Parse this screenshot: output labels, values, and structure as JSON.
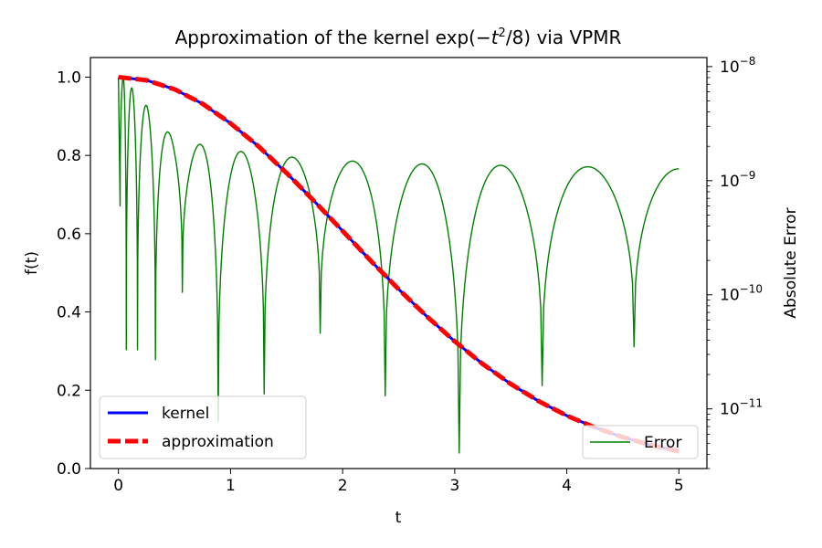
{
  "chart_data": {
    "type": "line",
    "title_prefix": "Approximation of the kernel exp(−",
    "title_var": "t",
    "title_exp": "2",
    "title_suffix": "/8) via VPMR",
    "xlabel": "t",
    "ylabel": "f(t)",
    "y2label": "Absolute Error",
    "xlim": [
      -0.25,
      5.25
    ],
    "ylim": [
      0,
      1.05
    ],
    "y2lim": [
      3e-12,
      1.2e-08
    ],
    "y2scale": "log",
    "xticks": [
      0,
      1,
      2,
      3,
      4,
      5
    ],
    "xtick_labels": [
      "0",
      "1",
      "2",
      "3",
      "4",
      "5"
    ],
    "yticks": [
      0.0,
      0.2,
      0.4,
      0.6,
      0.8,
      1.0
    ],
    "ytick_labels": [
      "0.0",
      "0.2",
      "0.4",
      "0.6",
      "0.8",
      "1.0"
    ],
    "y2ticks": [
      1e-11,
      1e-10,
      1e-09,
      1e-08
    ],
    "y2tick_bases": [
      "10",
      "10",
      "10",
      "10"
    ],
    "y2tick_exps": [
      "−11",
      "−10",
      "−9",
      "−8"
    ],
    "legend_left_position": "lower left",
    "legend_right_position": "lower right",
    "grid": false,
    "series": [
      {
        "name": "kernel",
        "color": "#0000ff",
        "style": "solid",
        "axis": "left",
        "x": [
          0,
          0.25,
          0.5,
          0.75,
          1,
          1.25,
          1.5,
          1.75,
          2,
          2.25,
          2.5,
          2.75,
          3,
          3.25,
          3.5,
          3.75,
          4,
          4.25,
          4.5,
          4.75,
          5
        ],
        "y": [
          1.0,
          0.992,
          0.969,
          0.932,
          0.882,
          0.823,
          0.755,
          0.682,
          0.607,
          0.531,
          0.458,
          0.389,
          0.325,
          0.267,
          0.216,
          0.172,
          0.135,
          0.105,
          0.08,
          0.06,
          0.044
        ]
      },
      {
        "name": "approximation",
        "color": "#ff0000",
        "style": "dashed",
        "axis": "left",
        "x": [
          0,
          0.25,
          0.5,
          0.75,
          1,
          1.25,
          1.5,
          1.75,
          2,
          2.25,
          2.5,
          2.75,
          3,
          3.25,
          3.5,
          3.75,
          4,
          4.25,
          4.5,
          4.75,
          5
        ],
        "y": [
          1.0,
          0.992,
          0.969,
          0.932,
          0.882,
          0.823,
          0.755,
          0.682,
          0.607,
          0.531,
          0.458,
          0.389,
          0.325,
          0.267,
          0.216,
          0.172,
          0.135,
          0.105,
          0.08,
          0.06,
          0.044
        ]
      },
      {
        "name": "Error",
        "color": "#008000",
        "style": "solid",
        "axis": "right",
        "scale": "log",
        "peak_curve": {
          "x": [
            0,
            0.5,
            1,
            1.5,
            2,
            2.5,
            3,
            3.5,
            4,
            4.5,
            5
          ],
          "y": [
            9e-09,
            2.3e-09,
            1.85e-09,
            1.62e-09,
            1.5e-09,
            1.42e-09,
            1.38e-09,
            1.36e-09,
            1.34e-09,
            1.3e-09,
            1.27e-09
          ]
        },
        "zero_crossings": [
          {
            "x": 0.015,
            "y": 6e-10
          },
          {
            "x": 0.07,
            "y": 3.3e-11
          },
          {
            "x": 0.17,
            "y": 3.3e-11
          },
          {
            "x": 0.33,
            "y": 2.7e-11
          },
          {
            "x": 0.57,
            "y": 1.05e-10
          },
          {
            "x": 0.89,
            "y": 7.8e-12
          },
          {
            "x": 1.3,
            "y": 1.35e-11
          },
          {
            "x": 1.8,
            "y": 4.6e-11
          },
          {
            "x": 2.38,
            "y": 1.3e-11
          },
          {
            "x": 3.04,
            "y": 4.1e-12
          },
          {
            "x": 3.78,
            "y": 1.6e-11
          },
          {
            "x": 4.6,
            "y": 3.5e-11
          }
        ]
      }
    ]
  }
}
